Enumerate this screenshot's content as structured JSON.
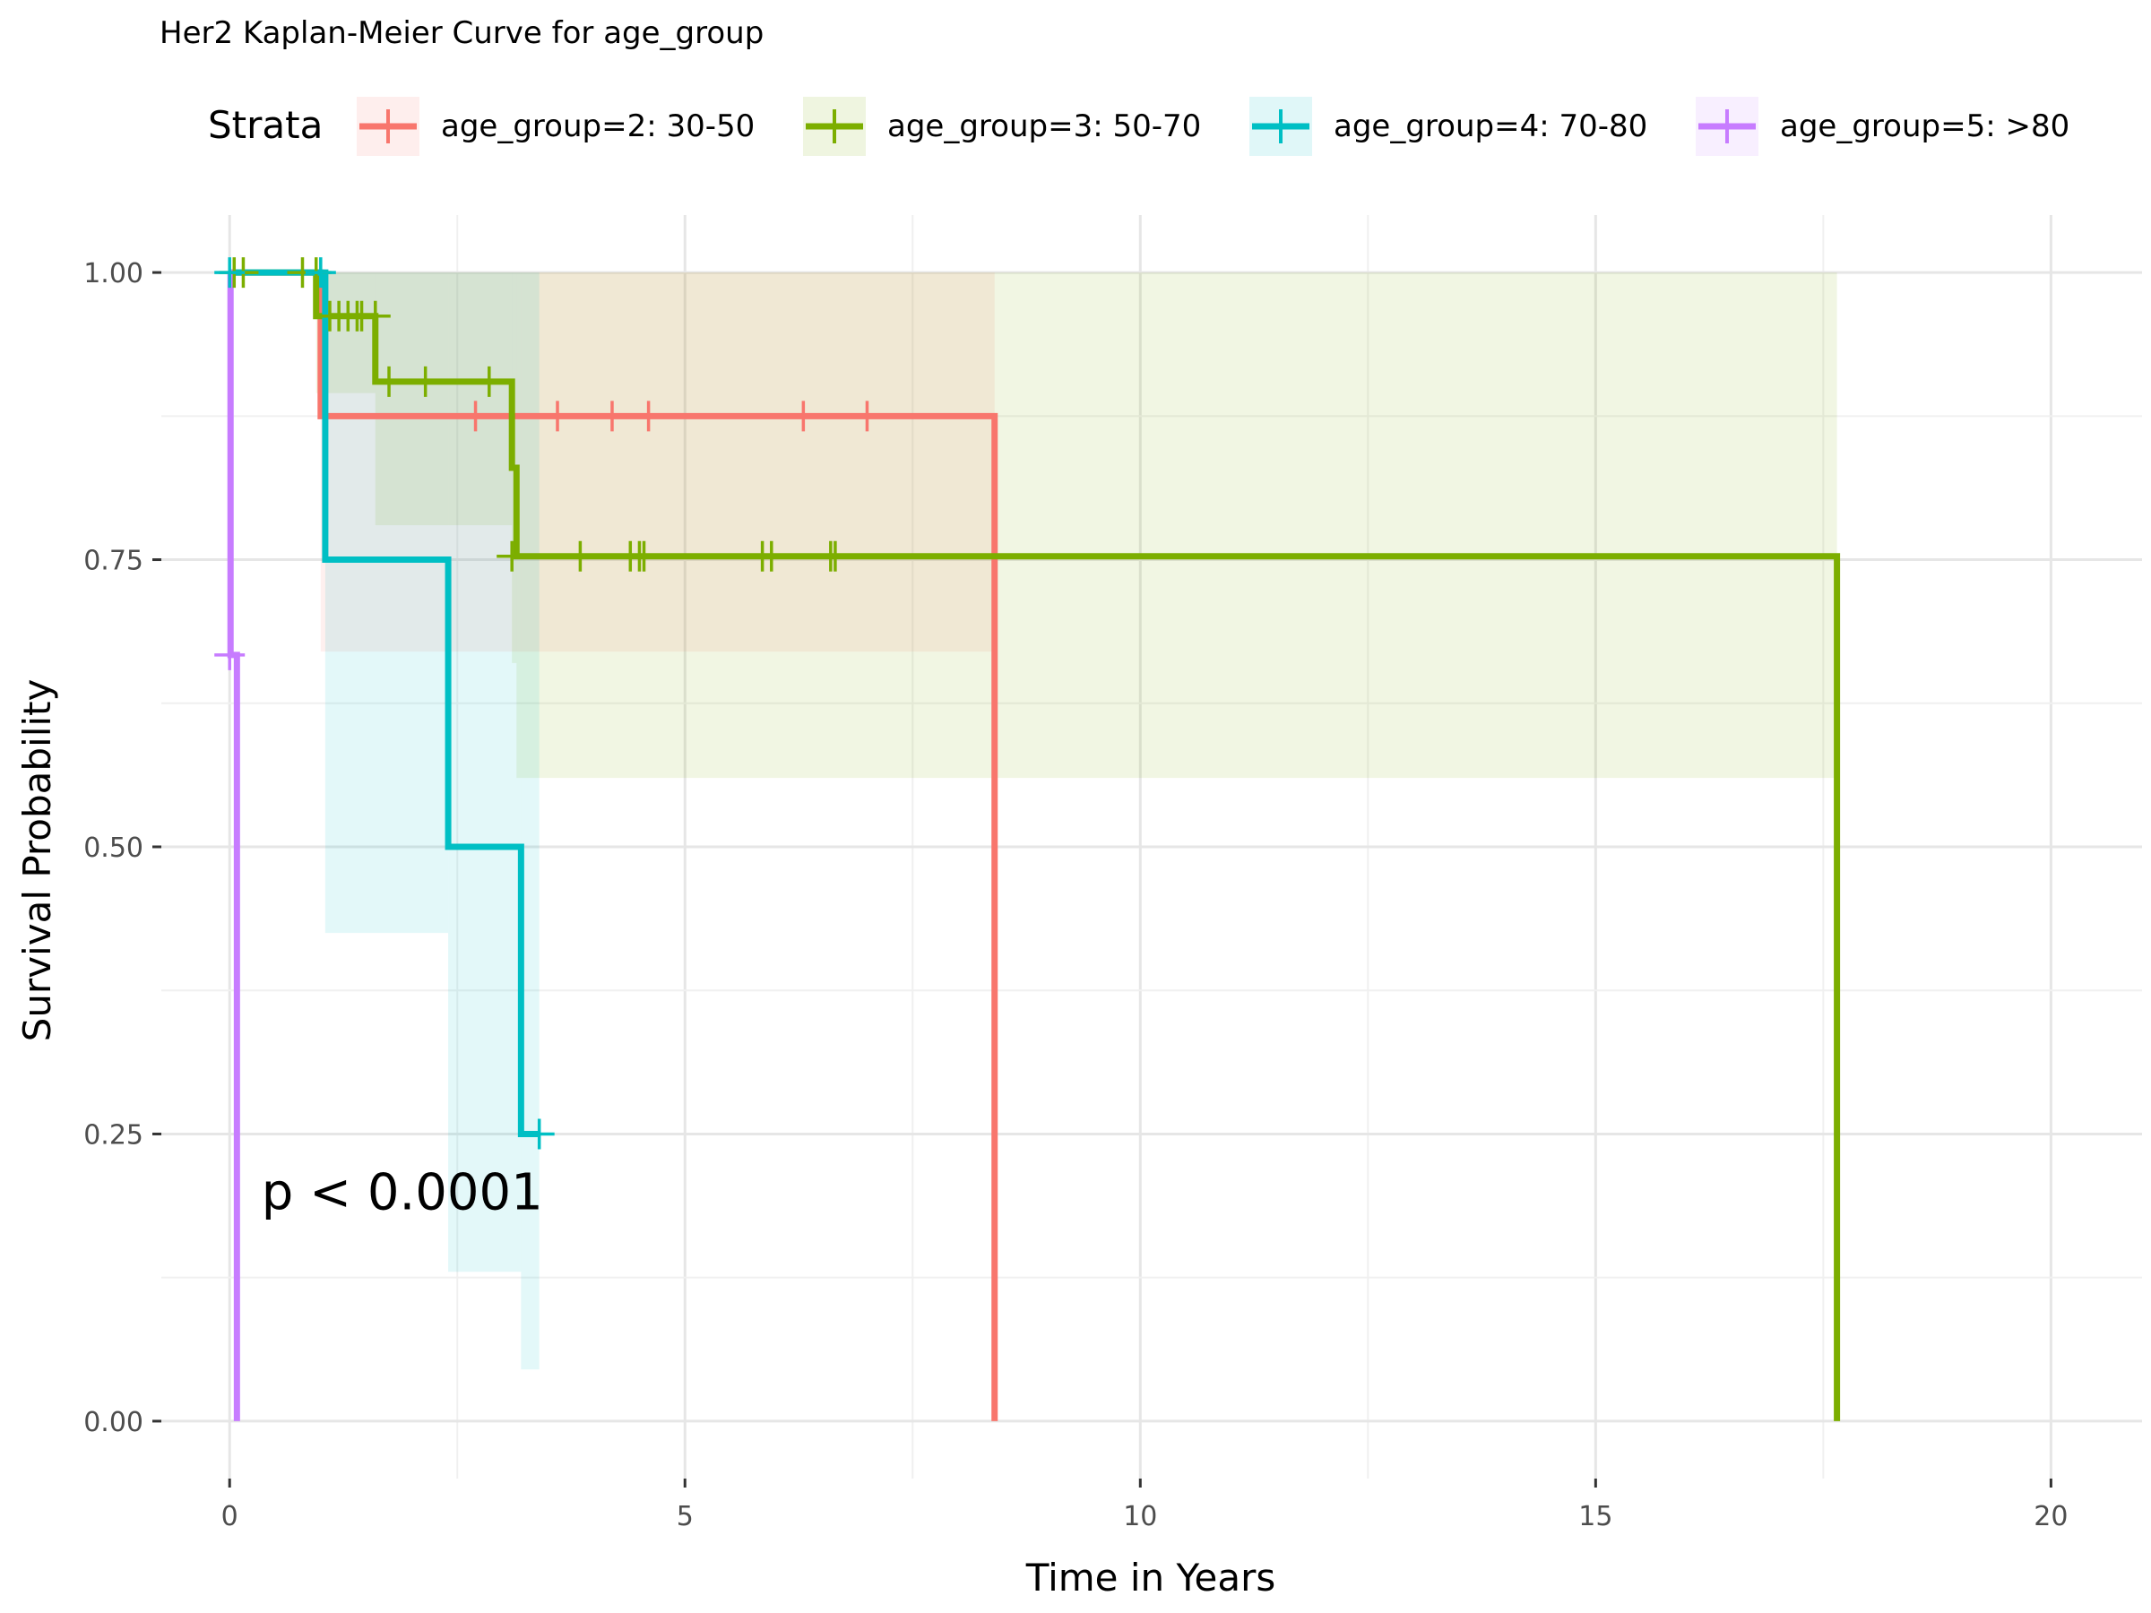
{
  "chart_data": {
    "type": "line",
    "title": "Her2 Kaplan-Meier Curve for age_group",
    "xlabel": "Time in Years",
    "ylabel": "Survival Probability",
    "xlim": [
      -0.75,
      21.0
    ],
    "ylim": [
      -0.05,
      1.05
    ],
    "x_ticks": [
      0,
      5,
      10,
      15,
      20
    ],
    "y_ticks": [
      0.0,
      0.25,
      0.5,
      0.75,
      1.0
    ],
    "x_tick_labels": [
      "0",
      "5",
      "10",
      "15",
      "20"
    ],
    "y_tick_labels": [
      "0.00",
      "0.25",
      "0.50",
      "0.75",
      "1.00"
    ],
    "grid": true,
    "legend": {
      "title": "Strata",
      "position": "top"
    },
    "annotation": "p < 0.0001",
    "annotation_pos": [
      0.35,
      0.2
    ],
    "series": [
      {
        "name": "age_group=2: 30-50",
        "color": "#F8766D",
        "steps": [
          [
            0,
            1.0
          ],
          [
            1.0,
            0.875
          ],
          [
            8.4,
            0.0
          ]
        ],
        "end_x": 8.4,
        "censor": [
          [
            2.7,
            0.875
          ],
          [
            3.6,
            0.875
          ],
          [
            4.2,
            0.875
          ],
          [
            4.6,
            0.875
          ],
          [
            6.3,
            0.875
          ],
          [
            7.0,
            0.875
          ]
        ],
        "ci": [
          [
            0,
            1.0,
            1.0
          ],
          [
            1.0,
            0.67,
            1.0
          ],
          [
            8.4,
            0.67,
            1.0
          ]
        ]
      },
      {
        "name": "age_group=3: 50-70",
        "color": "#7CAE00",
        "steps": [
          [
            0,
            1.0
          ],
          [
            0.95,
            0.962
          ],
          [
            1.6,
            0.905
          ],
          [
            3.1,
            0.83
          ],
          [
            3.15,
            0.753
          ],
          [
            17.65,
            0.0
          ]
        ],
        "end_x": 17.65,
        "censor": [
          [
            0.05,
            1.0
          ],
          [
            0.15,
            1.0
          ],
          [
            0.8,
            1.0
          ],
          [
            0.95,
            1.0
          ],
          [
            1.1,
            0.962
          ],
          [
            1.2,
            0.962
          ],
          [
            1.3,
            0.962
          ],
          [
            1.4,
            0.962
          ],
          [
            1.45,
            0.962
          ],
          [
            1.6,
            0.962
          ],
          [
            1.75,
            0.905
          ],
          [
            2.15,
            0.905
          ],
          [
            2.85,
            0.905
          ],
          [
            3.1,
            0.753
          ],
          [
            3.85,
            0.753
          ],
          [
            4.4,
            0.753
          ],
          [
            4.5,
            0.753
          ],
          [
            4.55,
            0.753
          ],
          [
            5.85,
            0.753
          ],
          [
            5.95,
            0.753
          ],
          [
            6.6,
            0.753
          ],
          [
            6.65,
            0.753
          ]
        ],
        "ci": [
          [
            0,
            1.0,
            1.0
          ],
          [
            0.95,
            0.895,
            1.0
          ],
          [
            1.6,
            0.78,
            1.0
          ],
          [
            3.1,
            0.66,
            1.0
          ],
          [
            3.15,
            0.56,
            1.0
          ],
          [
            17.65,
            0.56,
            1.0
          ]
        ]
      },
      {
        "name": "age_group=4: 70-80",
        "color": "#00BFC4",
        "steps": [
          [
            0,
            1.0
          ],
          [
            1.05,
            0.75
          ],
          [
            2.4,
            0.5
          ],
          [
            3.2,
            0.25
          ]
        ],
        "end_x": 3.4,
        "censor": [
          [
            0.0,
            1.0
          ],
          [
            1.0,
            1.0
          ],
          [
            3.4,
            0.25
          ]
        ],
        "ci": [
          [
            0,
            1.0,
            1.0
          ],
          [
            1.05,
            0.425,
            1.0
          ],
          [
            2.4,
            0.13,
            1.0
          ],
          [
            3.2,
            0.045,
            1.0
          ],
          [
            3.4,
            0.045,
            1.0
          ]
        ]
      },
      {
        "name": "age_group=5: >80",
        "color": "#C77CFF",
        "steps": [
          [
            0,
            1.0
          ],
          [
            0.01,
            0.667
          ],
          [
            0.08,
            0.0
          ]
        ],
        "end_x": 0.08,
        "censor": [
          [
            0.0,
            0.667
          ]
        ],
        "ci": []
      }
    ]
  }
}
